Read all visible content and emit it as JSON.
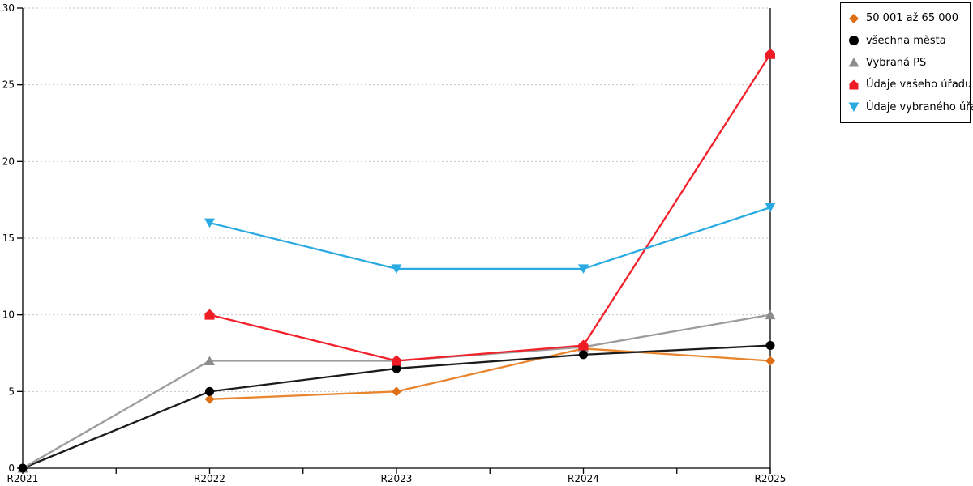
{
  "chart_data": {
    "type": "line",
    "title": "",
    "xlabel": "",
    "ylabel": "",
    "x_categories": [
      "R2021",
      "R2022",
      "R2023",
      "R2024",
      "R2025"
    ],
    "ylim": [
      0,
      30
    ],
    "yticks": [
      0,
      5,
      10,
      15,
      20,
      25,
      30
    ],
    "grid": "horizontal-dotted",
    "legend_position": "top-right-outside",
    "series": [
      {
        "name": "50 001 až 65 000",
        "marker": "diamond",
        "color": "#DD7016",
        "line_color": "#E8862F",
        "values": [
          null,
          4.5,
          5,
          7.8,
          7
        ]
      },
      {
        "name": "všechna města",
        "marker": "circle",
        "color": "#000000",
        "line_color": "#1C1C1C",
        "values": [
          0,
          5,
          6.5,
          7.4,
          8
        ]
      },
      {
        "name": "Vybraná PS",
        "marker": "triangle-up",
        "color": "#8C8C8C",
        "line_color": "#9C9C9C",
        "values": [
          0,
          7,
          7,
          7.9,
          10
        ]
      },
      {
        "name": "Údaje vašeho úřadu",
        "marker": "pentagon",
        "color": "#EE1C25",
        "line_color": "#F2222C",
        "values": [
          null,
          10,
          7,
          8,
          27
        ]
      },
      {
        "name": "Údaje vybraného úřadu",
        "marker": "triangle-down",
        "color": "#29ABE2",
        "line_color": "#29ABE2",
        "values": [
          null,
          16,
          13,
          13,
          17
        ]
      }
    ],
    "colors": {
      "grid": "#C6C6C6",
      "axis": "#000000",
      "background": "#FFFFFF"
    }
  }
}
